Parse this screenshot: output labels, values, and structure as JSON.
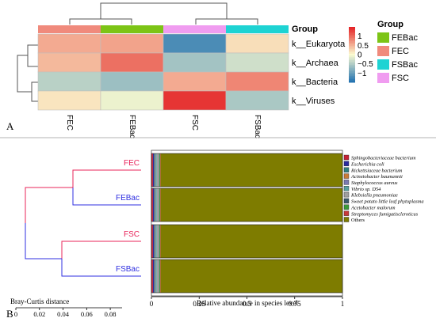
{
  "panel_labels": {
    "a": "A",
    "b": "B"
  },
  "chart_data": [
    {
      "type": "heatmap",
      "group_label": "Group",
      "columns": [
        "FEC",
        "FEBac",
        "FSC",
        "FSBac"
      ],
      "column_groups": [
        "FEC",
        "FEBac",
        "FSC",
        "FSBac"
      ],
      "rows": [
        "k__Eukaryota",
        "k__Archaea",
        "k__Bacteria",
        "k__Viruses"
      ],
      "values": [
        [
          0.55,
          0.6,
          -1.2,
          0.2
        ],
        [
          0.45,
          0.95,
          -0.6,
          -0.3
        ],
        [
          -0.45,
          -0.65,
          0.55,
          0.8
        ],
        [
          0.15,
          -0.1,
          1.35,
          -0.55
        ]
      ],
      "color_scale": {
        "min": -1.5,
        "max": 1.5,
        "low": "#1f70b0",
        "mid": "#fbfbd0",
        "high": "#e41f23"
      },
      "colorbar_ticks": [
        {
          "value": 1,
          "label": "1"
        },
        {
          "value": 0.5,
          "label": "0.5"
        },
        {
          "value": 0,
          "label": "0"
        },
        {
          "value": -0.5,
          "label": "−0.5"
        },
        {
          "value": -1,
          "label": "−1"
        }
      ],
      "legend": {
        "title": "Group",
        "entries": [
          {
            "label": "FEBac",
            "color": "#7cc416"
          },
          {
            "label": "FEC",
            "color": "#f08a7c"
          },
          {
            "label": "FSBac",
            "color": "#1ed3d3"
          },
          {
            "label": "FSC",
            "color": "#f09cf0"
          }
        ]
      },
      "group_colors": {
        "FEC": "#f08a7c",
        "FEBac": "#7cc416",
        "FSC": "#f09cf0",
        "FSBac": "#1ed3d3"
      },
      "dendrogram": "column and row clustering trees"
    },
    {
      "type": "bar",
      "orientation": "horizontal",
      "stacked": true,
      "xlabel": "Relative abundance in species level",
      "xlim": [
        0,
        1
      ],
      "xticks": [
        {
          "value": 0,
          "label": "0"
        },
        {
          "value": 0.25,
          "label": "0.25"
        },
        {
          "value": 0.5,
          "label": "0.5"
        },
        {
          "value": 0.75,
          "label": "0.75"
        },
        {
          "value": 1,
          "label": "1"
        }
      ],
      "categories": [
        "FEC",
        "FEBac",
        "FSC",
        "FSBac"
      ],
      "category_colors": {
        "FEC": "#e8245a",
        "FEBac": "#2f2fe0",
        "FSC": "#e8245a",
        "FSBac": "#2f2fe0"
      },
      "series": [
        {
          "name": "Sphingobacteriaceae bacterium",
          "color": "#c62236",
          "values": [
            0.008,
            0.008,
            0.008,
            0.008
          ]
        },
        {
          "name": "Escherichia coli",
          "color": "#2a2a9e",
          "values": [
            0.006,
            0.006,
            0.006,
            0.006
          ]
        },
        {
          "name": "Rickettsiaceae bacterium",
          "color": "#2f7f7f",
          "values": [
            0.004,
            0.004,
            0.004,
            0.004
          ]
        },
        {
          "name": "Acinetobacter baumannii",
          "color": "#c87a38",
          "values": [
            0.002,
            0.002,
            0.002,
            0.002
          ]
        },
        {
          "name": "Staphylococcus aureus",
          "color": "#7a7ab0",
          "values": [
            0.002,
            0.002,
            0.002,
            0.002
          ]
        },
        {
          "name": "Vibrio sp. D54",
          "color": "#58a0a0",
          "values": [
            0.006,
            0.006,
            0.006,
            0.006
          ]
        },
        {
          "name": "Klebsiella pneumoniae",
          "color": "#a0a0a0",
          "values": [
            0.012,
            0.012,
            0.012,
            0.012
          ]
        },
        {
          "name": "Sweet potato little leaf phytoplasma",
          "color": "#3b5a6a",
          "values": [
            0.002,
            0.002,
            0.002,
            0.002
          ]
        },
        {
          "name": "Acetobacter malorum",
          "color": "#3a9a3a",
          "values": [
            0.004,
            0.004,
            0.004,
            0.004
          ]
        },
        {
          "name": "Streptomyces fumigatiscleroticus",
          "color": "#c83a3a",
          "values": [
            0.002,
            0.002,
            0.002,
            0.002
          ]
        },
        {
          "name": "Others",
          "color": "#7e7c00",
          "values": [
            0.952,
            0.952,
            0.952,
            0.952
          ]
        }
      ],
      "dendrogram": {
        "title": "Bray-Curtis distance",
        "ticks": [
          {
            "value": 0,
            "label": "0"
          },
          {
            "value": 0.02,
            "label": "0.02"
          },
          {
            "value": 0.04,
            "label": "0.04"
          },
          {
            "value": 0.06,
            "label": "0.06"
          },
          {
            "value": 0.08,
            "label": "0.08"
          }
        ]
      }
    }
  ]
}
